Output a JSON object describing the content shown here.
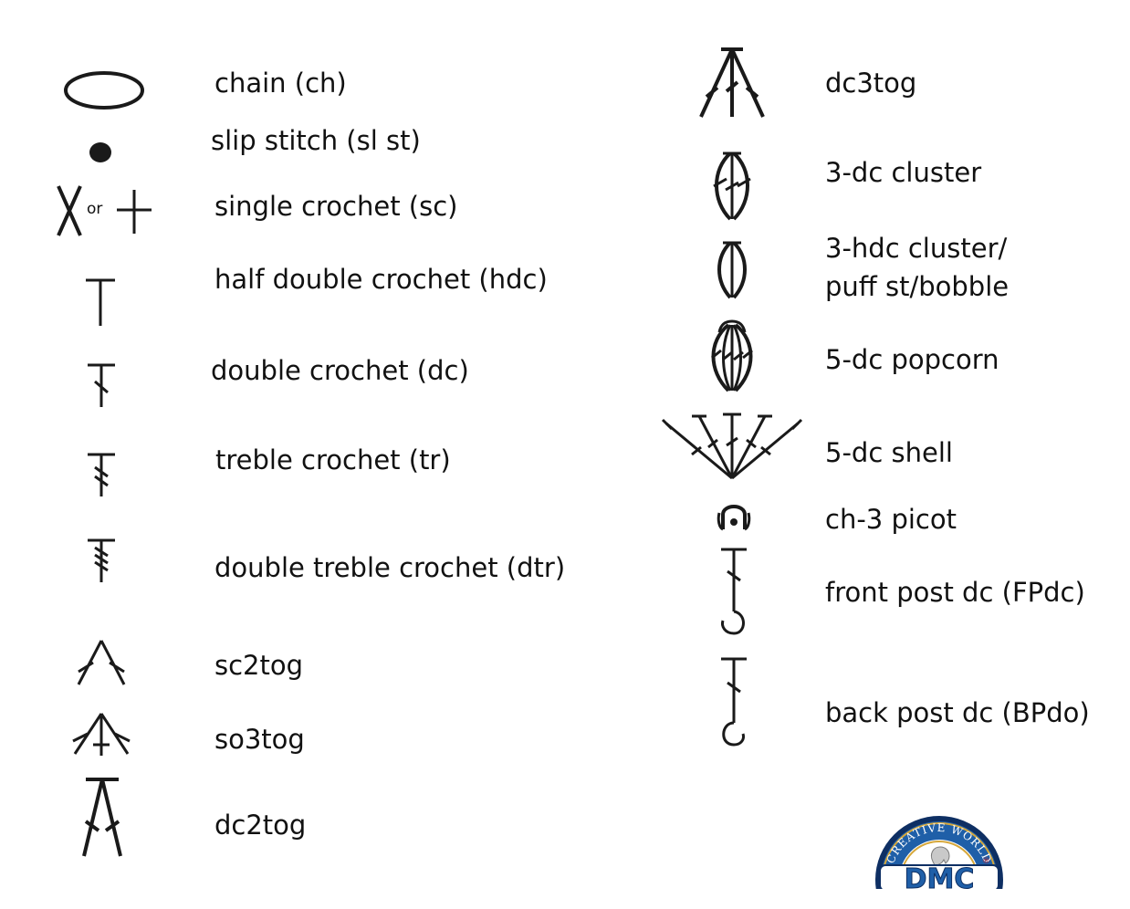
{
  "left_column": [
    {
      "label": "chain (ch)",
      "icon": "chain-oval-icon"
    },
    {
      "label": "slip stitch (sl st)",
      "icon": "slip-stitch-dot-icon"
    },
    {
      "label": "single crochet (sc)",
      "icon": "single-crochet-x-icon",
      "alt_icon": "single-crochet-plus-icon",
      "or_text": "or"
    },
    {
      "label": "half double crochet (hdc)",
      "icon": "hdc-t-icon"
    },
    {
      "label": "double crochet (dc)",
      "icon": "dc-one-slash-icon"
    },
    {
      "label": "treble crochet (tr)",
      "icon": "tr-two-slash-icon"
    },
    {
      "label": "double treble crochet (dtr)",
      "icon": "dtr-three-slash-icon"
    },
    {
      "label": "sc2tog",
      "icon": "sc2tog-icon"
    },
    {
      "label": "so3tog",
      "icon": "sc3tog-icon"
    },
    {
      "label": "dc2tog",
      "icon": "dc2tog-icon"
    }
  ],
  "right_column": [
    {
      "label": "dc3tog",
      "icon": "dc3tog-icon"
    },
    {
      "label": "3-dc cluster",
      "icon": "3dc-cluster-icon"
    },
    {
      "label_lines": [
        "3-hdc cluster/",
        "puff st/bobble"
      ],
      "icon": "3hdc-cluster-icon"
    },
    {
      "label": "5-dc popcorn",
      "icon": "popcorn-icon"
    },
    {
      "label": "5-dc shell",
      "icon": "shell-fan-icon"
    },
    {
      "label": "ch-3 picot",
      "icon": "picot-icon"
    },
    {
      "label": "front post dc (FPdc)",
      "icon": "front-post-hook-icon"
    },
    {
      "label": "back post dc (BPdo)",
      "icon": "back-post-hook-icon"
    }
  ],
  "logo": {
    "ring_text": "CREATIVE WORLD",
    "brand": "DMC",
    "registered": "®",
    "colors": {
      "blue": "#1f5fa8",
      "dark": "#0e2f63",
      "gold": "#d6a73a",
      "red": "#c0262d",
      "white": "#ffffff"
    }
  },
  "ink_color": "#1a1a1a"
}
